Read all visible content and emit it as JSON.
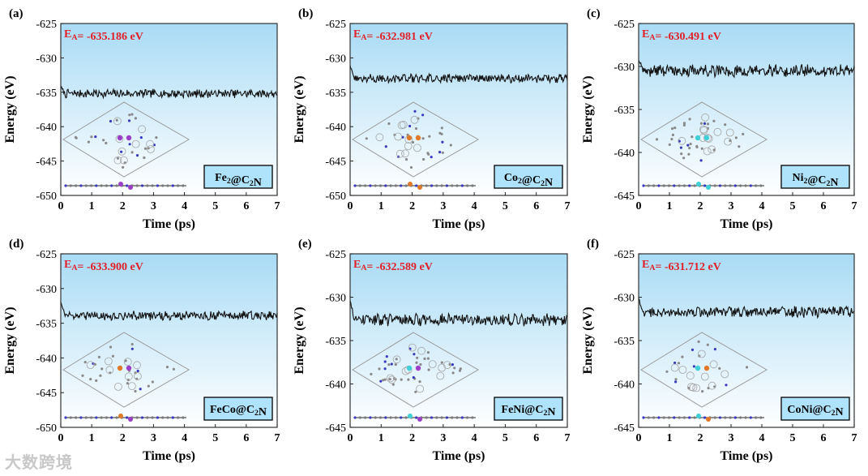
{
  "figure": {
    "watermark": "大数跨境",
    "colors": {
      "line": "#111111",
      "bg_top": "#a9dbf5",
      "bg_bottom": "#ffffff",
      "energy_label": "#e0202a",
      "label_box": "#aee3fb",
      "frame": "#333333"
    }
  },
  "chart_data": [
    {
      "panel": "(a)",
      "type": "line",
      "energy_label": "EA= -635.186 eV",
      "system_label": "Fe2@C2N",
      "xlabel": "Time (ps)",
      "ylabel": "Energy (eV)",
      "xlim": [
        0,
        7
      ],
      "ylim": [
        -650,
        -625
      ],
      "x_ticks": [
        "0",
        "1",
        "2",
        "3",
        "4",
        "5",
        "6",
        "7"
      ],
      "y_ticks": [
        "-625",
        "-630",
        "-635",
        "-640",
        "-645",
        "-650"
      ],
      "series": [
        {
          "name": "Energy",
          "start": -634.3,
          "mean": -635.186,
          "noise": 0.55,
          "x_end": 7
        }
      ],
      "inset_metals": [
        "#9b3fc9",
        "#9b3fc9"
      ]
    },
    {
      "panel": "(b)",
      "type": "line",
      "energy_label": "EA= -632.981 eV",
      "system_label": "Co2@C2N",
      "xlabel": "Time (ps)",
      "ylabel": "Energy (eV)",
      "xlim": [
        0,
        7
      ],
      "ylim": [
        -650,
        -625
      ],
      "x_ticks": [
        "0",
        "1",
        "2",
        "3",
        "4",
        "5",
        "6",
        "7"
      ],
      "y_ticks": [
        "-625",
        "-630",
        "-635",
        "-640",
        "-645",
        "-650"
      ],
      "series": [
        {
          "name": "Energy",
          "start": -631.0,
          "mean": -632.981,
          "noise": 0.55,
          "x_end": 7
        }
      ],
      "inset_metals": [
        "#e07a2a",
        "#e07a2a"
      ]
    },
    {
      "panel": "(c)",
      "type": "line",
      "energy_label": "EA= -630.491 eV",
      "system_label": "Ni2@C2N",
      "xlabel": "Time (ps)",
      "ylabel": "Energy (eV)",
      "xlim": [
        0,
        7
      ],
      "ylim": [
        -645,
        -625
      ],
      "x_ticks": [
        "0",
        "1",
        "2",
        "3",
        "4",
        "5",
        "6",
        "7"
      ],
      "y_ticks": [
        "-625",
        "-630",
        "-635",
        "-640",
        "-645"
      ],
      "series": [
        {
          "name": "Energy",
          "start": -629.2,
          "mean": -630.491,
          "noise": 0.6,
          "x_end": 7
        }
      ],
      "inset_metals": [
        "#3fd0d8",
        "#3fd0d8"
      ]
    },
    {
      "panel": "(d)",
      "type": "line",
      "energy_label": "EA= -633.900 eV",
      "system_label": "FeCo@C2N",
      "xlabel": "Time (ps)",
      "ylabel": "Energy (eV)",
      "xlim": [
        0,
        7
      ],
      "ylim": [
        -650,
        -625
      ],
      "x_ticks": [
        "0",
        "1",
        "2",
        "3",
        "4",
        "5",
        "6",
        "7"
      ],
      "y_ticks": [
        "-625",
        "-630",
        "-635",
        "-640",
        "-645",
        "-650"
      ],
      "series": [
        {
          "name": "Energy",
          "start": -632.0,
          "mean": -633.9,
          "noise": 0.55,
          "x_end": 7
        }
      ],
      "inset_metals": [
        "#e07a2a",
        "#9b3fc9"
      ]
    },
    {
      "panel": "(e)",
      "type": "line",
      "energy_label": "EA= -632.589 eV",
      "system_label": "FeNi@C2N",
      "xlabel": "Time (ps)",
      "ylabel": "Energy (eV)",
      "xlim": [
        0,
        7
      ],
      "ylim": [
        -645,
        -625
      ],
      "x_ticks": [
        "0",
        "1",
        "2",
        "3",
        "4",
        "5",
        "6",
        "7"
      ],
      "y_ticks": [
        "-625",
        "-630",
        "-635",
        "-640",
        "-645"
      ],
      "series": [
        {
          "name": "Energy",
          "start": -630.5,
          "mean": -632.589,
          "noise": 0.6,
          "x_end": 7
        }
      ],
      "inset_metals": [
        "#3fd0d8",
        "#9b3fc9"
      ]
    },
    {
      "panel": "(f)",
      "type": "line",
      "energy_label": "EA= -631.712 eV",
      "system_label": "CoNi@C2N",
      "xlabel": "Time (ps)",
      "ylabel": "Energy (eV)",
      "xlim": [
        0,
        7
      ],
      "ylim": [
        -645,
        -625
      ],
      "x_ticks": [
        "0",
        "1",
        "2",
        "3",
        "4",
        "5",
        "6",
        "7"
      ],
      "y_ticks": [
        "-625",
        "-630",
        "-635",
        "-640",
        "-645"
      ],
      "series": [
        {
          "name": "Energy",
          "start": -630.3,
          "mean": -631.712,
          "noise": 0.55,
          "x_end": 7
        }
      ],
      "inset_metals": [
        "#3fd0d8",
        "#e07a2a"
      ]
    }
  ]
}
